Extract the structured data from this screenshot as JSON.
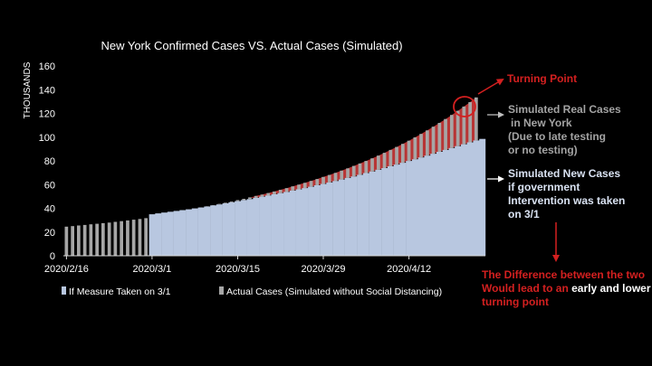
{
  "chart_data": {
    "type": "bar",
    "title": "New York Confirmed Cases VS. Actual Cases (Simulated)",
    "ylabel": "THOUSANDS",
    "xlabel": "",
    "ylim": [
      0,
      160
    ],
    "yticks": [
      0,
      20,
      40,
      60,
      80,
      100,
      120,
      140,
      160
    ],
    "x_tick_labels": [
      "2020/2/16",
      "2020/3/1",
      "2020/3/15",
      "2020/3/29",
      "2020/4/12"
    ],
    "x_tick_indices": [
      0,
      14,
      28,
      42,
      56
    ],
    "legend_placement": "bottom",
    "series": [
      {
        "name": "If Measure Taken on 3/1",
        "color": "#b8c7e0",
        "start_index": 14,
        "values": [
          35,
          35.7,
          36.4,
          37.1,
          37.8,
          38.5,
          39.2,
          39.9,
          40.7,
          41.5,
          42.4,
          43.3,
          44.2,
          45.1,
          46,
          46.9,
          47.8,
          48.8,
          49.8,
          50.8,
          51.8,
          52.8,
          53.8,
          54.9,
          56,
          57.1,
          58.2,
          59.4,
          60.6,
          61.8,
          63,
          64.3,
          65.6,
          66.9,
          68.3,
          69.7,
          71.1,
          72.5,
          73.9,
          75.4,
          76.9,
          78.4,
          79.9,
          81.4,
          82.9,
          84.4,
          86,
          87.6,
          89.2,
          90.8,
          92.4,
          94,
          95.6,
          97.2,
          98.5
        ]
      },
      {
        "name": "Actual Cases (Simulated without Social Distancing)",
        "color": "#a6a6a6",
        "start_index": 0,
        "values": [
          24.5,
          25,
          25.5,
          26,
          26.5,
          27,
          27.5,
          28,
          28.6,
          29.2,
          29.8,
          30.4,
          31,
          31.7,
          34,
          35,
          35.8,
          36.6,
          37.4,
          38.2,
          39,
          39.9,
          40.8,
          41.7,
          42.7,
          43.7,
          44.7,
          45.8,
          46.9,
          48,
          49.2,
          50.4,
          51.6,
          52.9,
          54.2,
          55.6,
          57,
          58.5,
          60,
          61.5,
          63.1,
          64.7,
          66.4,
          68.1,
          69.9,
          71.8,
          73.7,
          75.7,
          77.8,
          79.9,
          82.1,
          84.4,
          86.8,
          89.2,
          91.7,
          94.3,
          97,
          99.8,
          102.7,
          105.7,
          108.8,
          112,
          115.3,
          118.7,
          122.2,
          125.8,
          129.5,
          133.5
        ]
      }
    ]
  },
  "annotations": {
    "turning_point": "Turning Point",
    "real_cases": [
      "Simulated Real Cases",
      "in New York",
      "(Due to late testing",
      "or no testing)"
    ],
    "new_cases": [
      "Simulated New Cases",
      "if government",
      "Intervention was taken",
      "on 3/1"
    ],
    "difference_red": "The Difference between the two",
    "difference_line2_red": "Would lead to an",
    "difference_line2_white": "early and lower",
    "difference_line3_red": "turning point"
  },
  "colors": {
    "accent_red": "#d42020",
    "difference_fill": "#c83a3a"
  }
}
